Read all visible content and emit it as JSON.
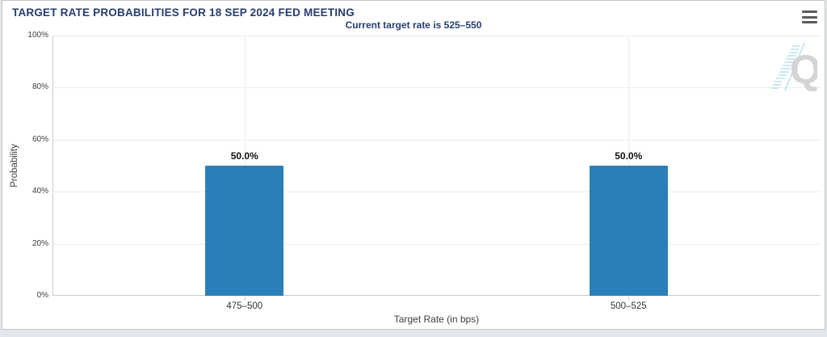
{
  "header": {
    "title": "TARGET RATE PROBABILITIES FOR 18 SEP 2024 FED MEETING",
    "menu_icon": "hamburger-menu-icon"
  },
  "chart_data": {
    "type": "bar",
    "title": "Current target rate is 525–550",
    "categories": [
      "475–500",
      "500–525"
    ],
    "values": [
      50.0,
      50.0
    ],
    "value_labels": [
      "50.0%",
      "50.0%"
    ],
    "xlabel": "Target Rate (in bps)",
    "ylabel": "Probability",
    "ylim": [
      0,
      100
    ],
    "ytick_step": 20,
    "yticks": [
      "100%",
      "80%",
      "60%",
      "40%",
      "20%",
      "0%"
    ],
    "grid": true,
    "legend": "none",
    "bar_color": "#2b7fb8"
  },
  "watermark": {
    "icon": "q-logo-watermark",
    "letter": "Q",
    "letter_color": "#d2d2d2",
    "hatch_color": "#a9dcf0"
  },
  "colors": {
    "title_navy": "#263d6e",
    "axis_line": "#c9c9c9",
    "gridline": "#ececec",
    "widget_border": "#c6c6c6",
    "page_background": "#e3e6ec"
  }
}
